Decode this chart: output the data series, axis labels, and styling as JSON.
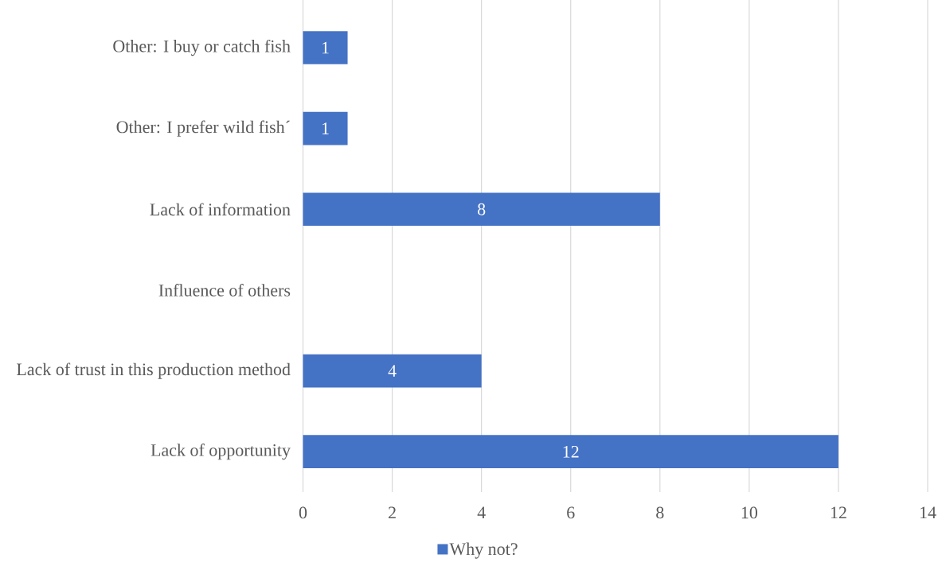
{
  "chart_data": {
    "type": "bar",
    "orientation": "horizontal",
    "categories": [
      "Other: I buy or catch fish",
      "Other: I prefer wild fish´",
      "Lack of information",
      "Influence of others",
      "Lack of trust in this production method",
      "Lack of opportunity"
    ],
    "series": [
      {
        "name": "Why not?",
        "color": "#4472c4",
        "values": [
          1,
          1,
          8,
          null,
          4,
          12
        ],
        "value_labels": [
          "1",
          "1",
          "8",
          null,
          "4",
          "12"
        ]
      }
    ],
    "xlim": [
      0,
      14
    ],
    "xticks": [
      0,
      2,
      4,
      6,
      8,
      10,
      12,
      14
    ],
    "grid": "x",
    "legend": "bottom"
  }
}
